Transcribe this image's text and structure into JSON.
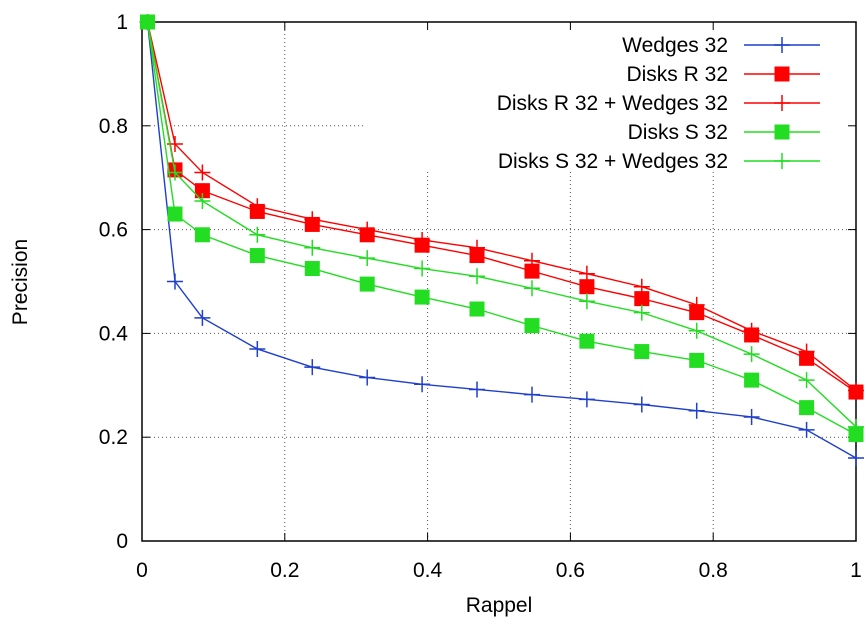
{
  "chart_data": {
    "type": "line",
    "xlabel": "Rappel",
    "ylabel": "Precision",
    "xlim": [
      0,
      1
    ],
    "ylim": [
      0,
      1
    ],
    "xticks": [
      "0",
      "0.2",
      "0.4",
      "0.6",
      "0.8",
      "1"
    ],
    "yticks": [
      "0",
      "0.2",
      "0.4",
      "0.6",
      "0.8",
      "1"
    ],
    "grid": true,
    "legend_position": "top-right",
    "x": [
      0.0077,
      0.0462,
      0.0846,
      0.1615,
      0.2385,
      0.3154,
      0.3923,
      0.4692,
      0.5462,
      0.6231,
      0.7,
      0.7769,
      0.8538,
      0.9308,
      1.0
    ],
    "series": [
      {
        "name": "Wedges 32",
        "color": "#1f3fcc",
        "marker": "plus",
        "values": [
          1.0,
          0.5,
          0.43,
          0.37,
          0.335,
          0.315,
          0.302,
          0.292,
          0.282,
          0.273,
          0.263,
          0.251,
          0.239,
          0.214,
          0.16
        ]
      },
      {
        "name": "Disks R 32",
        "color": "#ff0000",
        "marker": "square",
        "values": [
          1.0,
          0.715,
          0.675,
          0.635,
          0.61,
          0.59,
          0.57,
          0.55,
          0.52,
          0.49,
          0.467,
          0.44,
          0.397,
          0.352,
          0.287
        ]
      },
      {
        "name": "Disks R 32 + Wedges 32",
        "color": "#ff0000",
        "marker": "plus",
        "values": [
          1.0,
          0.765,
          0.71,
          0.645,
          0.62,
          0.6,
          0.58,
          0.565,
          0.54,
          0.515,
          0.49,
          0.455,
          0.405,
          0.365,
          0.29
        ]
      },
      {
        "name": "Disks S 32",
        "color": "#22dd22",
        "marker": "square",
        "values": [
          1.0,
          0.63,
          0.59,
          0.55,
          0.525,
          0.495,
          0.47,
          0.447,
          0.415,
          0.385,
          0.365,
          0.348,
          0.31,
          0.257,
          0.205
        ]
      },
      {
        "name": "Disks S 32 + Wedges 32",
        "color": "#22dd22",
        "marker": "plus",
        "values": [
          1.0,
          0.71,
          0.655,
          0.59,
          0.565,
          0.545,
          0.525,
          0.51,
          0.487,
          0.462,
          0.44,
          0.405,
          0.36,
          0.31,
          0.22
        ]
      }
    ]
  }
}
